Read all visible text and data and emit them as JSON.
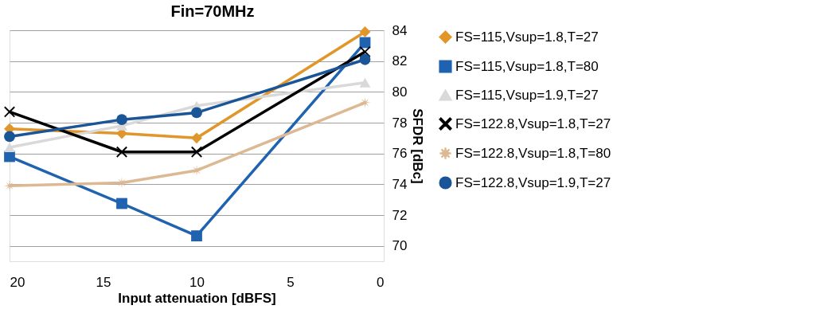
{
  "chart_data": {
    "type": "line",
    "title": "Fin=70MHz",
    "xlabel": "Input attenuation [dBFS]",
    "ylabel": "SFDR [dBc]",
    "x": [
      20,
      14,
      10,
      1
    ],
    "xlim": [
      20,
      0
    ],
    "xticks": [
      20,
      15,
      10,
      5,
      0
    ],
    "ylim": [
      69,
      84
    ],
    "yticks": [
      70,
      72,
      74,
      76,
      78,
      80,
      82,
      84
    ],
    "grid": "y",
    "legend": "right",
    "series": [
      {
        "name": "FS=115,Vsup=1.8,T=27",
        "color": "#e0962a",
        "marker": "diamond",
        "values": [
          77.6,
          77.3,
          77.0,
          83.9
        ]
      },
      {
        "name": "FS=115,Vsup=1.8,T=80",
        "color": "#1f63b0",
        "marker": "square",
        "values": [
          75.8,
          72.75,
          70.65,
          83.2
        ]
      },
      {
        "name": "FS=115,Vsup=1.9,T=27",
        "color": "#d9d9d9",
        "marker": "triangle",
        "values": [
          76.4,
          77.8,
          79.1,
          80.6
        ]
      },
      {
        "name": "FS=122.8,Vsup=1.8,T=27",
        "color": "#000000",
        "marker": "cross",
        "values": [
          78.7,
          76.1,
          76.1,
          82.6
        ]
      },
      {
        "name": "FS=122.8,Vsup=1.8,T=80",
        "color": "#dcb893",
        "marker": "star",
        "values": [
          73.9,
          74.1,
          74.9,
          79.3
        ]
      },
      {
        "name": "FS=122.8,Vsup=1.9,T=27",
        "color": "#1a5597",
        "marker": "circle",
        "values": [
          77.1,
          78.2,
          78.65,
          82.1
        ]
      }
    ]
  }
}
